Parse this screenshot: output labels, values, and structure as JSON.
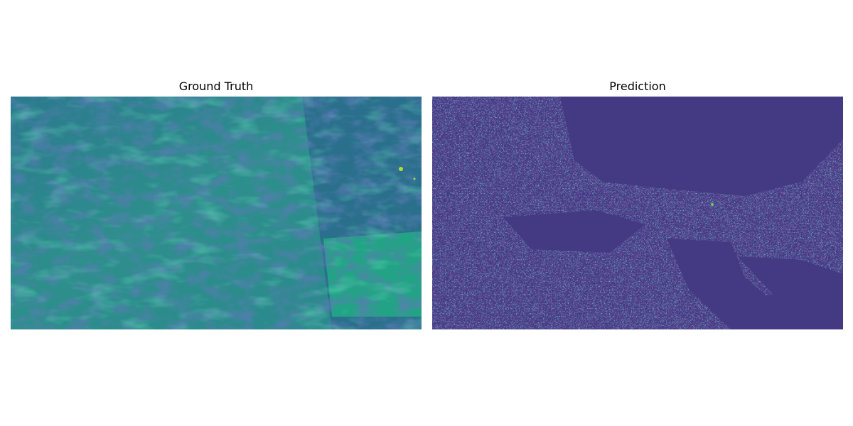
{
  "chart_data": [
    {
      "type": "heatmap",
      "title": "Ground Truth",
      "colormap": "viridis",
      "axis": "off",
      "colors": {
        "base": "#2f8e8c",
        "bright": "#22a585",
        "highlight": "#9bd93c",
        "dark": "#3a4f88",
        "darkest": "#46317e"
      }
    },
    {
      "type": "heatmap",
      "title": "Prediction",
      "colormap": "viridis",
      "axis": "off",
      "colors": {
        "base": "#443a83",
        "speckle": "#2f6b8e",
        "bright": "#2fb47c",
        "highlight": "#7fd34e",
        "darkest": "#440154"
      }
    }
  ]
}
